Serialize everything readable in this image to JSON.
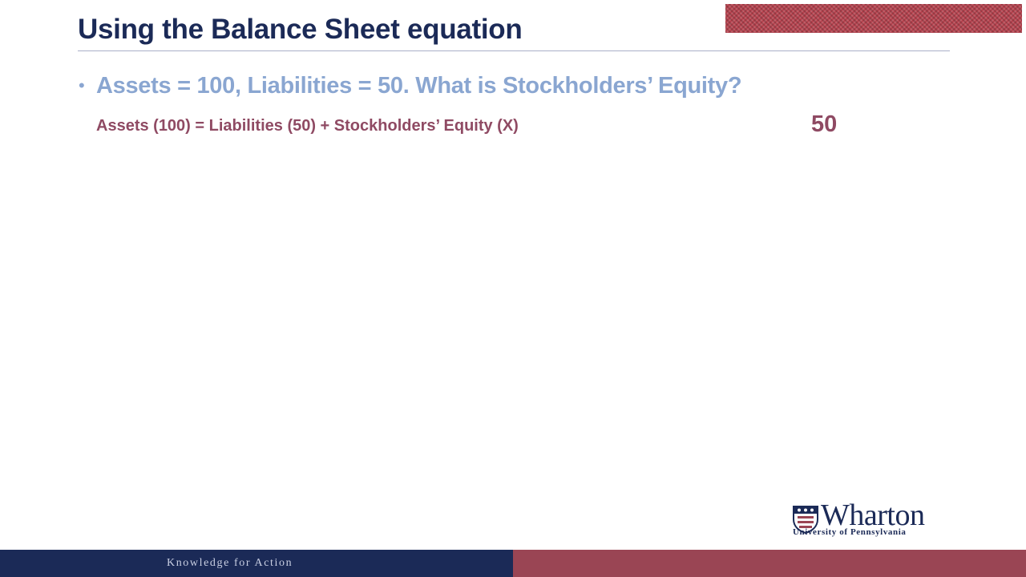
{
  "slide": {
    "title": "Using the Balance Sheet equation",
    "bullet_marker": "•",
    "question": "Assets = 100, Liabilities = 50.  What is Stockholders’ Equity?",
    "equation": "Assets (100) = Liabilities (50) + Stockholders’ Equity (X)",
    "answer": "50"
  },
  "logo": {
    "wordmark": "Wharton",
    "subtitle": "University of Pennsylvania"
  },
  "footer": {
    "tagline": "Knowledge for Action"
  },
  "colors": {
    "navy": "#1b2a57",
    "maroon": "#9a4554",
    "question_blue": "#8aa6d1",
    "equation_plum": "#8f4a63"
  },
  "icons": {
    "shield": "penn-shield-icon"
  }
}
